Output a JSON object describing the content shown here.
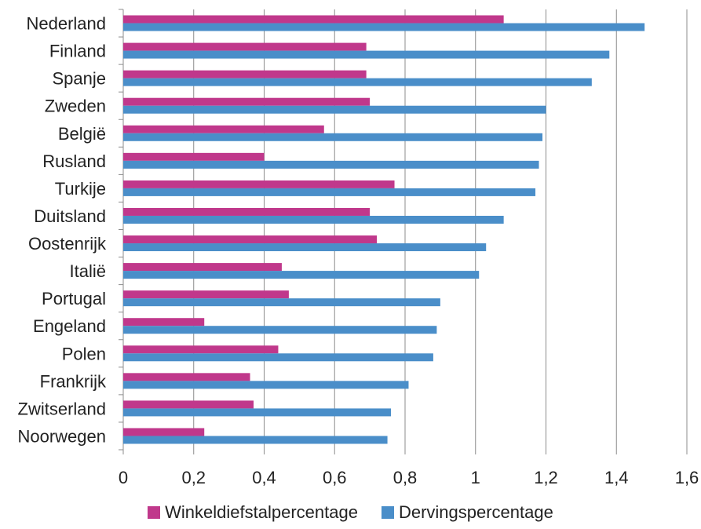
{
  "chart_data": {
    "type": "bar",
    "orientation": "horizontal",
    "categories": [
      "Nederland",
      "Finland",
      "Spanje",
      "Zweden",
      "België",
      "Rusland",
      "Turkije",
      "Duitsland",
      "Oostenrijk",
      "Italië",
      "Portugal",
      "Engeland",
      "Polen",
      "Frankrijk",
      "Zwitserland",
      "Noorwegen"
    ],
    "series": [
      {
        "name": "Winkeldiefstalpercentage",
        "color": "#c0388b",
        "values": [
          1.08,
          0.69,
          0.69,
          0.7,
          0.57,
          0.4,
          0.77,
          0.7,
          0.72,
          0.45,
          0.47,
          0.23,
          0.44,
          0.36,
          0.37,
          0.23
        ]
      },
      {
        "name": "Dervingspercentage",
        "color": "#4a8ec9",
        "values": [
          1.48,
          1.38,
          1.33,
          1.2,
          1.19,
          1.18,
          1.17,
          1.08,
          1.03,
          1.01,
          0.9,
          0.89,
          0.88,
          0.81,
          0.76,
          0.75
        ]
      }
    ],
    "xlim": [
      0,
      1.6
    ],
    "xticks": [
      "0",
      "0,2",
      "0,4",
      "0,6",
      "0,8",
      "1",
      "1,2",
      "1,4",
      "1,6"
    ],
    "grid": true,
    "legend_position": "bottom",
    "title": "",
    "xlabel": "",
    "ylabel": ""
  }
}
